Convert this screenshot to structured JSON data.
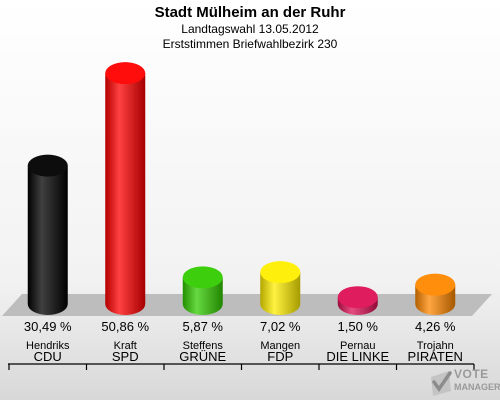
{
  "chart_data": {
    "type": "bar",
    "title": "Stadt Mülheim an der Ruhr",
    "subtitle_lines": [
      "Landtagswahl 13.05.2012",
      "Erststimmen Briefwahlbezirk 230"
    ],
    "categories": [
      {
        "candidate": "Hendriks",
        "party": "CDU",
        "value_label": "30,49 %",
        "color": "#000000"
      },
      {
        "candidate": "Kraft",
        "party": "SPD",
        "value_label": "50,86 %",
        "color": "#ff0000"
      },
      {
        "candidate": "Steffens",
        "party": "GRÜNE",
        "value_label": "5,87 %",
        "color": "#33cc00"
      },
      {
        "candidate": "Mangen",
        "party": "FDP",
        "value_label": "7,02 %",
        "color": "#ffee00"
      },
      {
        "candidate": "Pernau",
        "party": "DIE LINKE",
        "value_label": "1,50 %",
        "color": "#dd1155"
      },
      {
        "candidate": "Trojahn",
        "party": "PIRATEN",
        "value_label": "4,26 %",
        "color": "#ff8800"
      }
    ],
    "values": [
      30.49,
      50.86,
      5.87,
      7.02,
      1.5,
      4.26
    ],
    "unit": "%",
    "ylim": [
      0,
      52
    ],
    "grid": false,
    "legend": "none"
  },
  "logo": {
    "line1": "VOTE",
    "line2": "MANAGER",
    "icon": "ballot-check-icon"
  }
}
